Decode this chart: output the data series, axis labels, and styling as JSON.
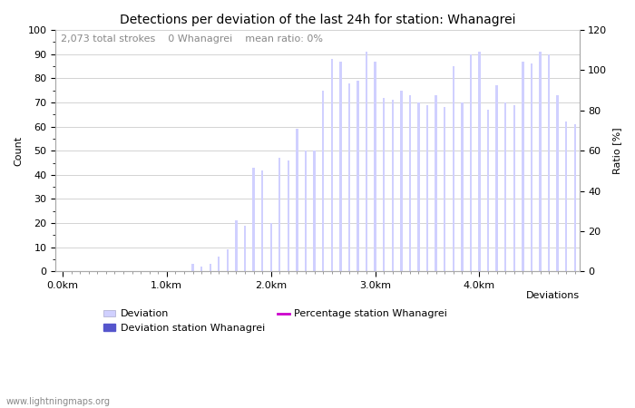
{
  "title": "Detections per deviation of the last 24h for station: Whanagrei",
  "subtitle": "2,073 total strokes    0 Whanagrei    mean ratio: 0%",
  "xlabel": "Deviations",
  "ylabel_left": "Count",
  "ylabel_right": "Ratio [%]",
  "ylim_left": [
    0,
    100
  ],
  "ylim_right": [
    0,
    120
  ],
  "yticks_left": [
    0,
    10,
    20,
    30,
    40,
    50,
    60,
    70,
    80,
    90,
    100
  ],
  "yticks_right": [
    0,
    20,
    40,
    60,
    80,
    100,
    120
  ],
  "xtick_labels": [
    "0.0km",
    "1.0km",
    "2.0km",
    "3.0km",
    "4.0km"
  ],
  "bar_color_light": "#d0d0ff",
  "bar_color_dark": "#5555cc",
  "bar_color_magenta": "#cc00cc",
  "background_color": "#ffffff",
  "grid_color": "#cccccc",
  "watermark": "www.lightningmaps.org",
  "bar_values": [
    0,
    0,
    0,
    0,
    0,
    0,
    0,
    0,
    0,
    0,
    0,
    0,
    0,
    0,
    0,
    3,
    2,
    3,
    6,
    9,
    21,
    19,
    43,
    42,
    20,
    47,
    46,
    59,
    50,
    50,
    75,
    88,
    87,
    78,
    79,
    91,
    87,
    72,
    71,
    75,
    73,
    70,
    69,
    73,
    68,
    85,
    70,
    90,
    91,
    67,
    77,
    70,
    69,
    87,
    86,
    91,
    90,
    73,
    62,
    61
  ],
  "num_bars": 60,
  "bar_width": 0.25,
  "figsize": [
    7.0,
    4.5
  ],
  "dpi": 100,
  "title_fontsize": 10,
  "axis_fontsize": 8,
  "tick_fontsize": 8,
  "subtitle_fontsize": 8,
  "legend_fontsize": 8
}
